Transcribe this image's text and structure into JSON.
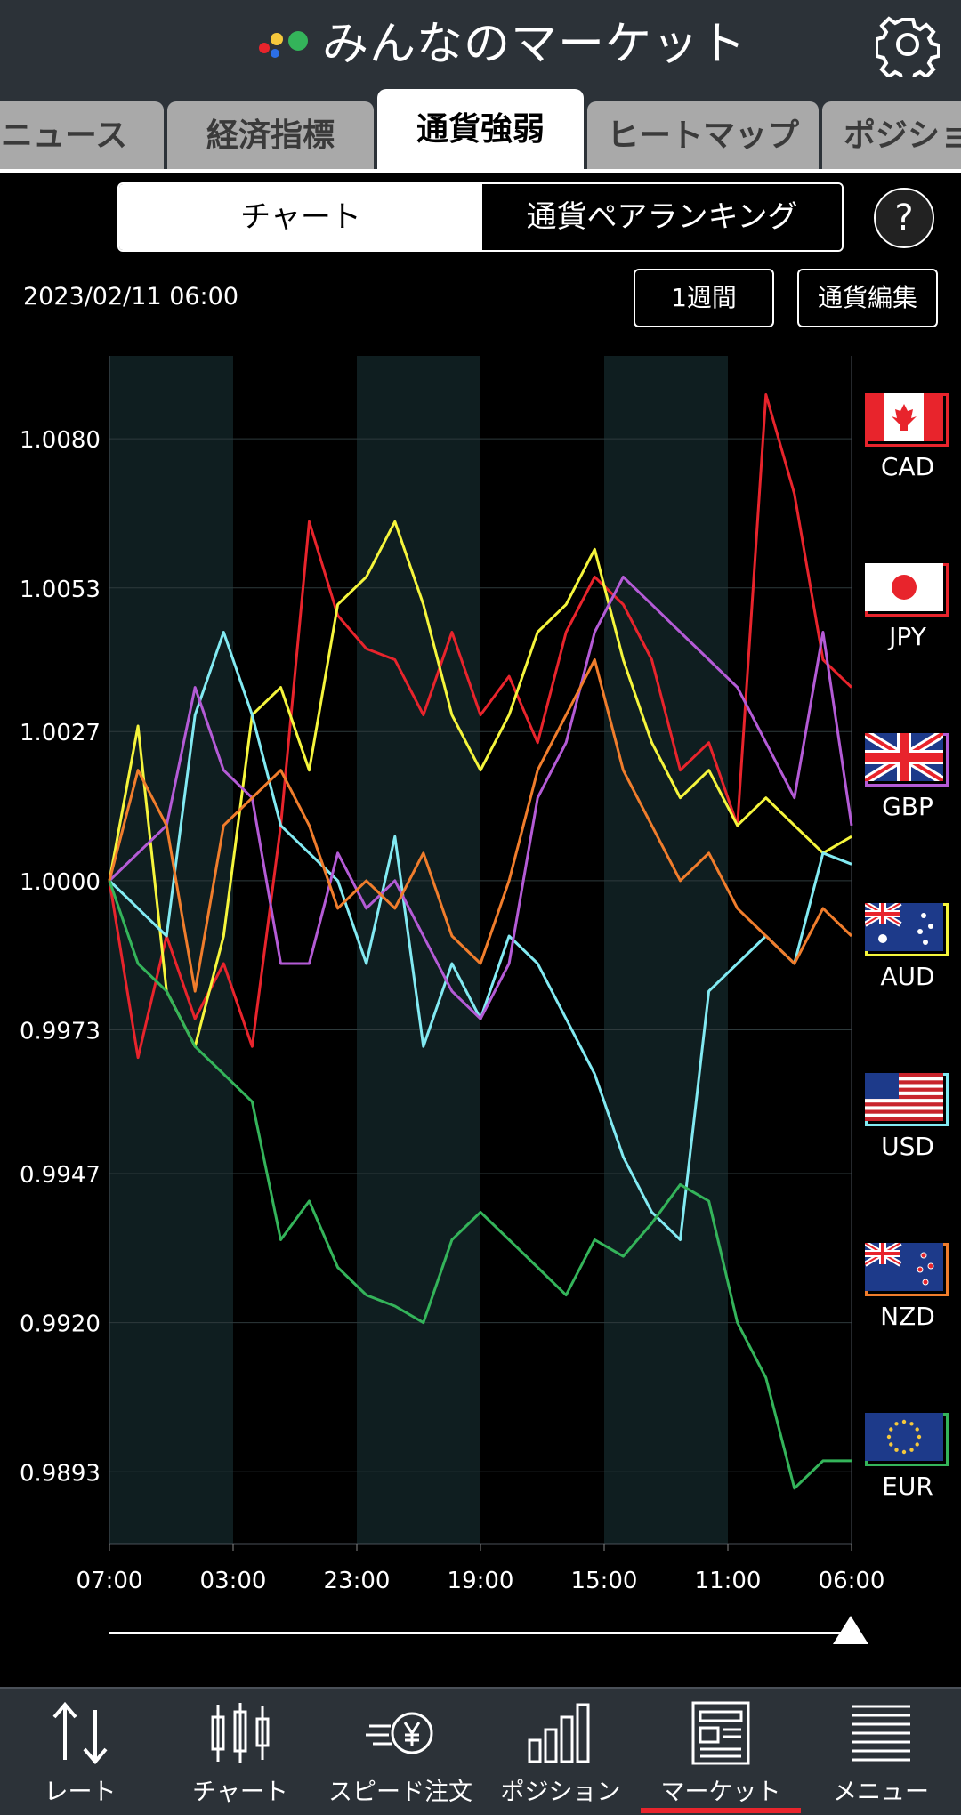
{
  "header": {
    "title": "みんなのマーケット"
  },
  "tabs": [
    {
      "label": "ニュース"
    },
    {
      "label": "経済指標"
    },
    {
      "label": "通貨強弱"
    },
    {
      "label": "ヒートマップ"
    },
    {
      "label": "ポジショ"
    }
  ],
  "segment": {
    "chart": "チャート",
    "ranking": "通貨ペアランキング"
  },
  "help": {
    "label": "?"
  },
  "controls": {
    "timestamp": "2023/02/11 06:00",
    "period": "1週間",
    "edit": "通貨編集"
  },
  "currencies": [
    {
      "code": "CAD",
      "color": "#e8242c"
    },
    {
      "code": "JPY",
      "color": "#e8242c"
    },
    {
      "code": "GBP",
      "color": "#b45bd6"
    },
    {
      "code": "AUD",
      "color": "#f5f53c"
    },
    {
      "code": "USD",
      "color": "#82eaf2"
    },
    {
      "code": "NZD",
      "color": "#f07d2c"
    },
    {
      "code": "EUR",
      "color": "#34b45a"
    }
  ],
  "chart_data": {
    "type": "line",
    "ylim": [
      0.988,
      1.0095
    ],
    "yticks": [
      "1.0080",
      "1.0053",
      "1.0027",
      "1.0000",
      "0.9973",
      "0.9947",
      "0.9920",
      "0.9893"
    ],
    "ytick_values": [
      1.008,
      1.0053,
      1.0027,
      1.0,
      0.9973,
      0.9947,
      0.992,
      0.9893
    ],
    "xticks": [
      "07:00",
      "03:00",
      "23:00",
      "19:00",
      "15:00",
      "11:00",
      "06:00"
    ],
    "series": [
      {
        "color": "#e8242c",
        "values": [
          1.0,
          0.9968,
          0.999,
          0.9975,
          0.9985,
          0.997,
          1.001,
          1.0065,
          1.0048,
          1.0042,
          1.004,
          1.003,
          1.0045,
          1.003,
          1.0037,
          1.0025,
          1.0045,
          1.0055,
          1.005,
          1.004,
          1.002,
          1.0025,
          1.001,
          1.0088,
          1.007,
          1.004,
          1.0035
        ]
      },
      {
        "color": "#f5f53c",
        "values": [
          1.0,
          1.0028,
          0.998,
          0.997,
          0.999,
          1.003,
          1.0035,
          1.002,
          1.005,
          1.0055,
          1.0065,
          1.005,
          1.003,
          1.002,
          1.003,
          1.0045,
          1.005,
          1.006,
          1.004,
          1.0025,
          1.0015,
          1.002,
          1.001,
          1.0015,
          1.001,
          1.0005,
          1.0008
        ]
      },
      {
        "color": "#82eaf2",
        "values": [
          1.0,
          0.9995,
          0.999,
          1.003,
          1.0045,
          1.003,
          1.001,
          1.0005,
          1.0,
          0.9985,
          1.0008,
          0.997,
          0.9985,
          0.9975,
          0.999,
          0.9985,
          0.9975,
          0.9965,
          0.995,
          0.994,
          0.9935,
          0.998,
          0.9985,
          0.999,
          0.9985,
          1.0005,
          1.0003
        ]
      },
      {
        "color": "#b45bd6",
        "values": [
          1.0,
          1.0005,
          1.001,
          1.0035,
          1.002,
          1.0015,
          0.9985,
          0.9985,
          1.0005,
          0.9995,
          1.0,
          0.999,
          0.998,
          0.9975,
          0.9985,
          1.0015,
          1.0025,
          1.0045,
          1.0055,
          1.005,
          1.0045,
          1.004,
          1.0035,
          1.0025,
          1.0015,
          1.0045,
          1.001
        ]
      },
      {
        "color": "#f07d2c",
        "values": [
          1.0,
          1.002,
          1.001,
          0.998,
          1.001,
          1.0015,
          1.002,
          1.001,
          0.9995,
          1.0,
          0.9995,
          1.0005,
          0.999,
          0.9985,
          1.0,
          1.002,
          1.003,
          1.004,
          1.002,
          1.001,
          1.0,
          1.0005,
          0.9995,
          0.999,
          0.9985,
          0.9995,
          0.999
        ]
      },
      {
        "color": "#34b45a",
        "values": [
          1.0,
          0.9985,
          0.998,
          0.997,
          0.9965,
          0.996,
          0.9935,
          0.9942,
          0.993,
          0.9925,
          0.9923,
          0.992,
          0.9935,
          0.994,
          0.9935,
          0.993,
          0.9925,
          0.9935,
          0.9932,
          0.9938,
          0.9945,
          0.9942,
          0.992,
          0.991,
          0.989,
          0.9895,
          0.9895
        ]
      }
    ]
  },
  "nav": [
    {
      "label": "レート",
      "icon": "rate-arrows-icon"
    },
    {
      "label": "チャート",
      "icon": "candlestick-icon"
    },
    {
      "label": "スピード注文",
      "icon": "speed-order-yen-icon"
    },
    {
      "label": "ポジション",
      "icon": "bar-chart-icon"
    },
    {
      "label": "マーケット",
      "icon": "newspaper-icon"
    },
    {
      "label": "メニュー",
      "icon": "menu-lines-icon"
    }
  ]
}
